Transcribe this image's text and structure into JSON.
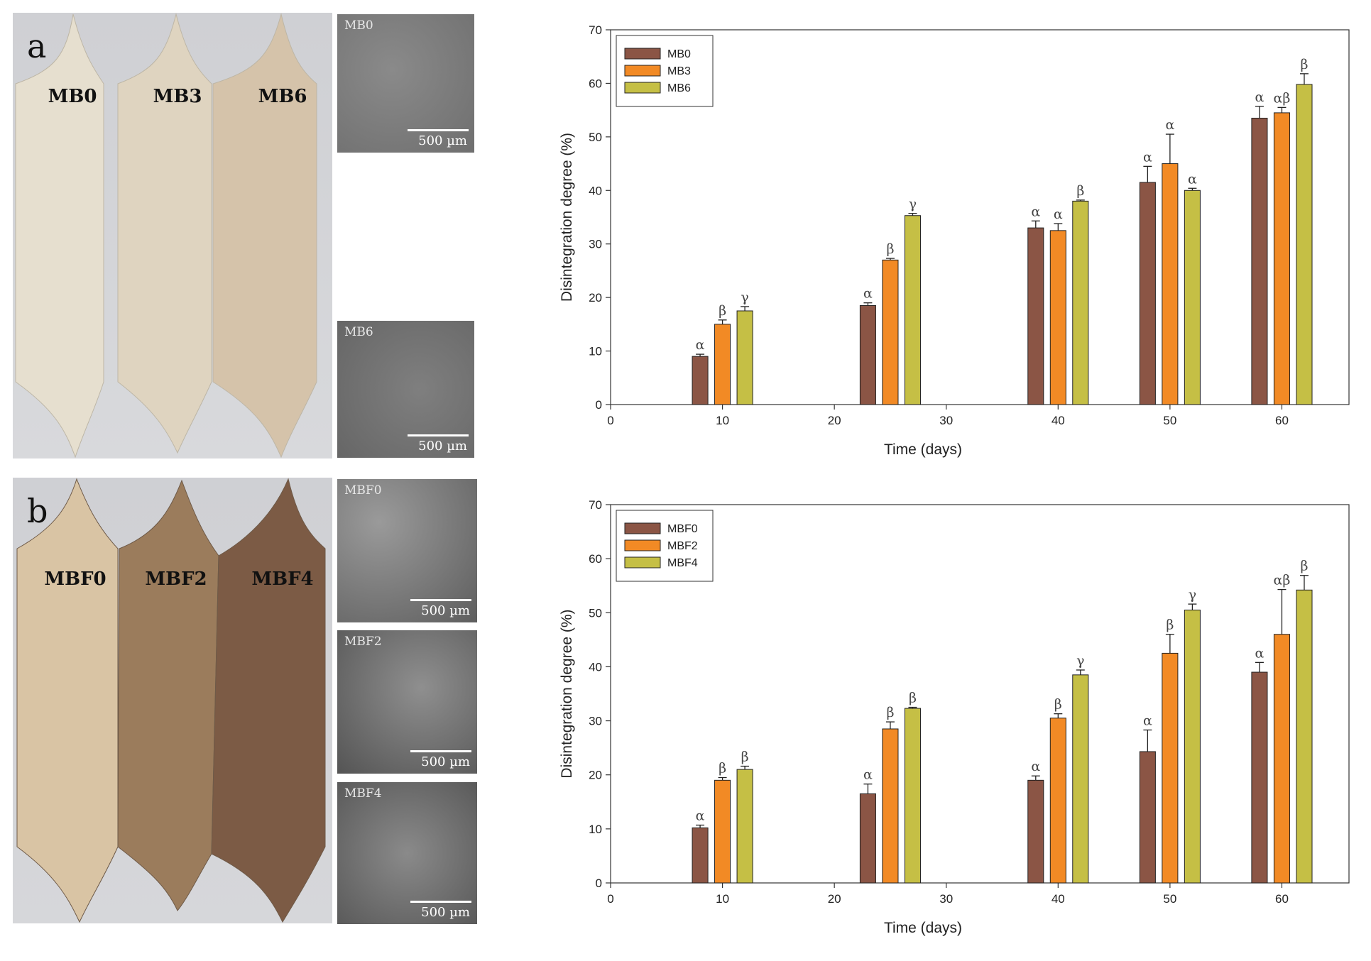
{
  "panel_a": {
    "letter": "a",
    "strips": [
      "MB0",
      "MB3",
      "MB6"
    ],
    "strip_colors": [
      "#e6dfcf",
      "#dfd4c0",
      "#d5c3aa"
    ],
    "sem": [
      {
        "label": "MB0",
        "scale": "500 µm"
      },
      {
        "label": "MB6",
        "scale": "500 µm"
      }
    ]
  },
  "panel_b": {
    "letter": "b",
    "strips": [
      "MBF0",
      "MBF2",
      "MBF4"
    ],
    "strip_colors": [
      "#d9c4a4",
      "#9b7c5c",
      "#7c5b45"
    ],
    "sem": [
      {
        "label": "MBF0",
        "scale": "500 µm"
      },
      {
        "label": "MBF2",
        "scale": "500 µm"
      },
      {
        "label": "MBF4",
        "scale": "500 µm"
      }
    ]
  },
  "chart_data": [
    {
      "type": "bar",
      "title": "",
      "xlabel": "Time (days)",
      "ylabel": "Disintegration degree (%)",
      "xlim": [
        0,
        66
      ],
      "ylim": [
        0,
        70
      ],
      "xticks": [
        0,
        10,
        20,
        30,
        40,
        50,
        60
      ],
      "yticks": [
        0,
        10,
        20,
        30,
        40,
        50,
        60,
        70
      ],
      "categories": [
        10,
        25,
        40,
        50,
        60
      ],
      "group_centers": [
        10,
        25,
        40,
        50,
        60
      ],
      "colors": [
        "#8b5545",
        "#f28a25",
        "#c5bf45"
      ],
      "legend_position": "top-left",
      "series": [
        {
          "name": "MB0",
          "values": [
            9,
            18.5,
            33,
            41.5,
            53.5
          ],
          "errors": [
            0.4,
            0.5,
            1.3,
            3.0,
            2.2
          ],
          "sig": [
            "α",
            "α",
            "α",
            "α",
            "α"
          ]
        },
        {
          "name": "MB3",
          "values": [
            15,
            27,
            32.5,
            45,
            54.5
          ],
          "errors": [
            0.8,
            0.3,
            1.3,
            5.5,
            1.0
          ],
          "sig": [
            "β",
            "β",
            "α",
            "α",
            "αβ"
          ]
        },
        {
          "name": "MB6",
          "values": [
            17.5,
            35.3,
            38,
            40,
            59.8
          ],
          "errors": [
            0.8,
            0.4,
            0.2,
            0.4,
            2.0
          ],
          "sig": [
            "γ",
            "γ",
            "β",
            "α",
            "β"
          ]
        }
      ]
    },
    {
      "type": "bar",
      "title": "",
      "xlabel": "Time (days)",
      "ylabel": "Disintegration degree (%)",
      "xlim": [
        0,
        66
      ],
      "ylim": [
        0,
        70
      ],
      "xticks": [
        0,
        10,
        20,
        30,
        40,
        50,
        60
      ],
      "yticks": [
        0,
        10,
        20,
        30,
        40,
        50,
        60,
        70
      ],
      "categories": [
        10,
        25,
        40,
        50,
        60
      ],
      "group_centers": [
        10,
        25,
        40,
        50,
        60
      ],
      "colors": [
        "#8b5545",
        "#f28a25",
        "#c5bf45"
      ],
      "legend_position": "top-left",
      "series": [
        {
          "name": "MBF0",
          "values": [
            10.2,
            16.5,
            19,
            24.3,
            39
          ],
          "errors": [
            0.5,
            1.8,
            0.8,
            4.0,
            1.8
          ],
          "sig": [
            "α",
            "α",
            "α",
            "α",
            "α"
          ]
        },
        {
          "name": "MBF2",
          "values": [
            19,
            28.5,
            30.5,
            42.5,
            46
          ],
          "errors": [
            0.5,
            1.3,
            0.8,
            3.5,
            8.3
          ],
          "sig": [
            "β",
            "β",
            "β",
            "β",
            "αβ"
          ]
        },
        {
          "name": "MBF4",
          "values": [
            21,
            32.3,
            38.5,
            50.5,
            54.2
          ],
          "errors": [
            0.6,
            0.2,
            0.9,
            1.1,
            2.7
          ],
          "sig": [
            "β",
            "β",
            "γ",
            "γ",
            "β"
          ]
        }
      ]
    }
  ]
}
